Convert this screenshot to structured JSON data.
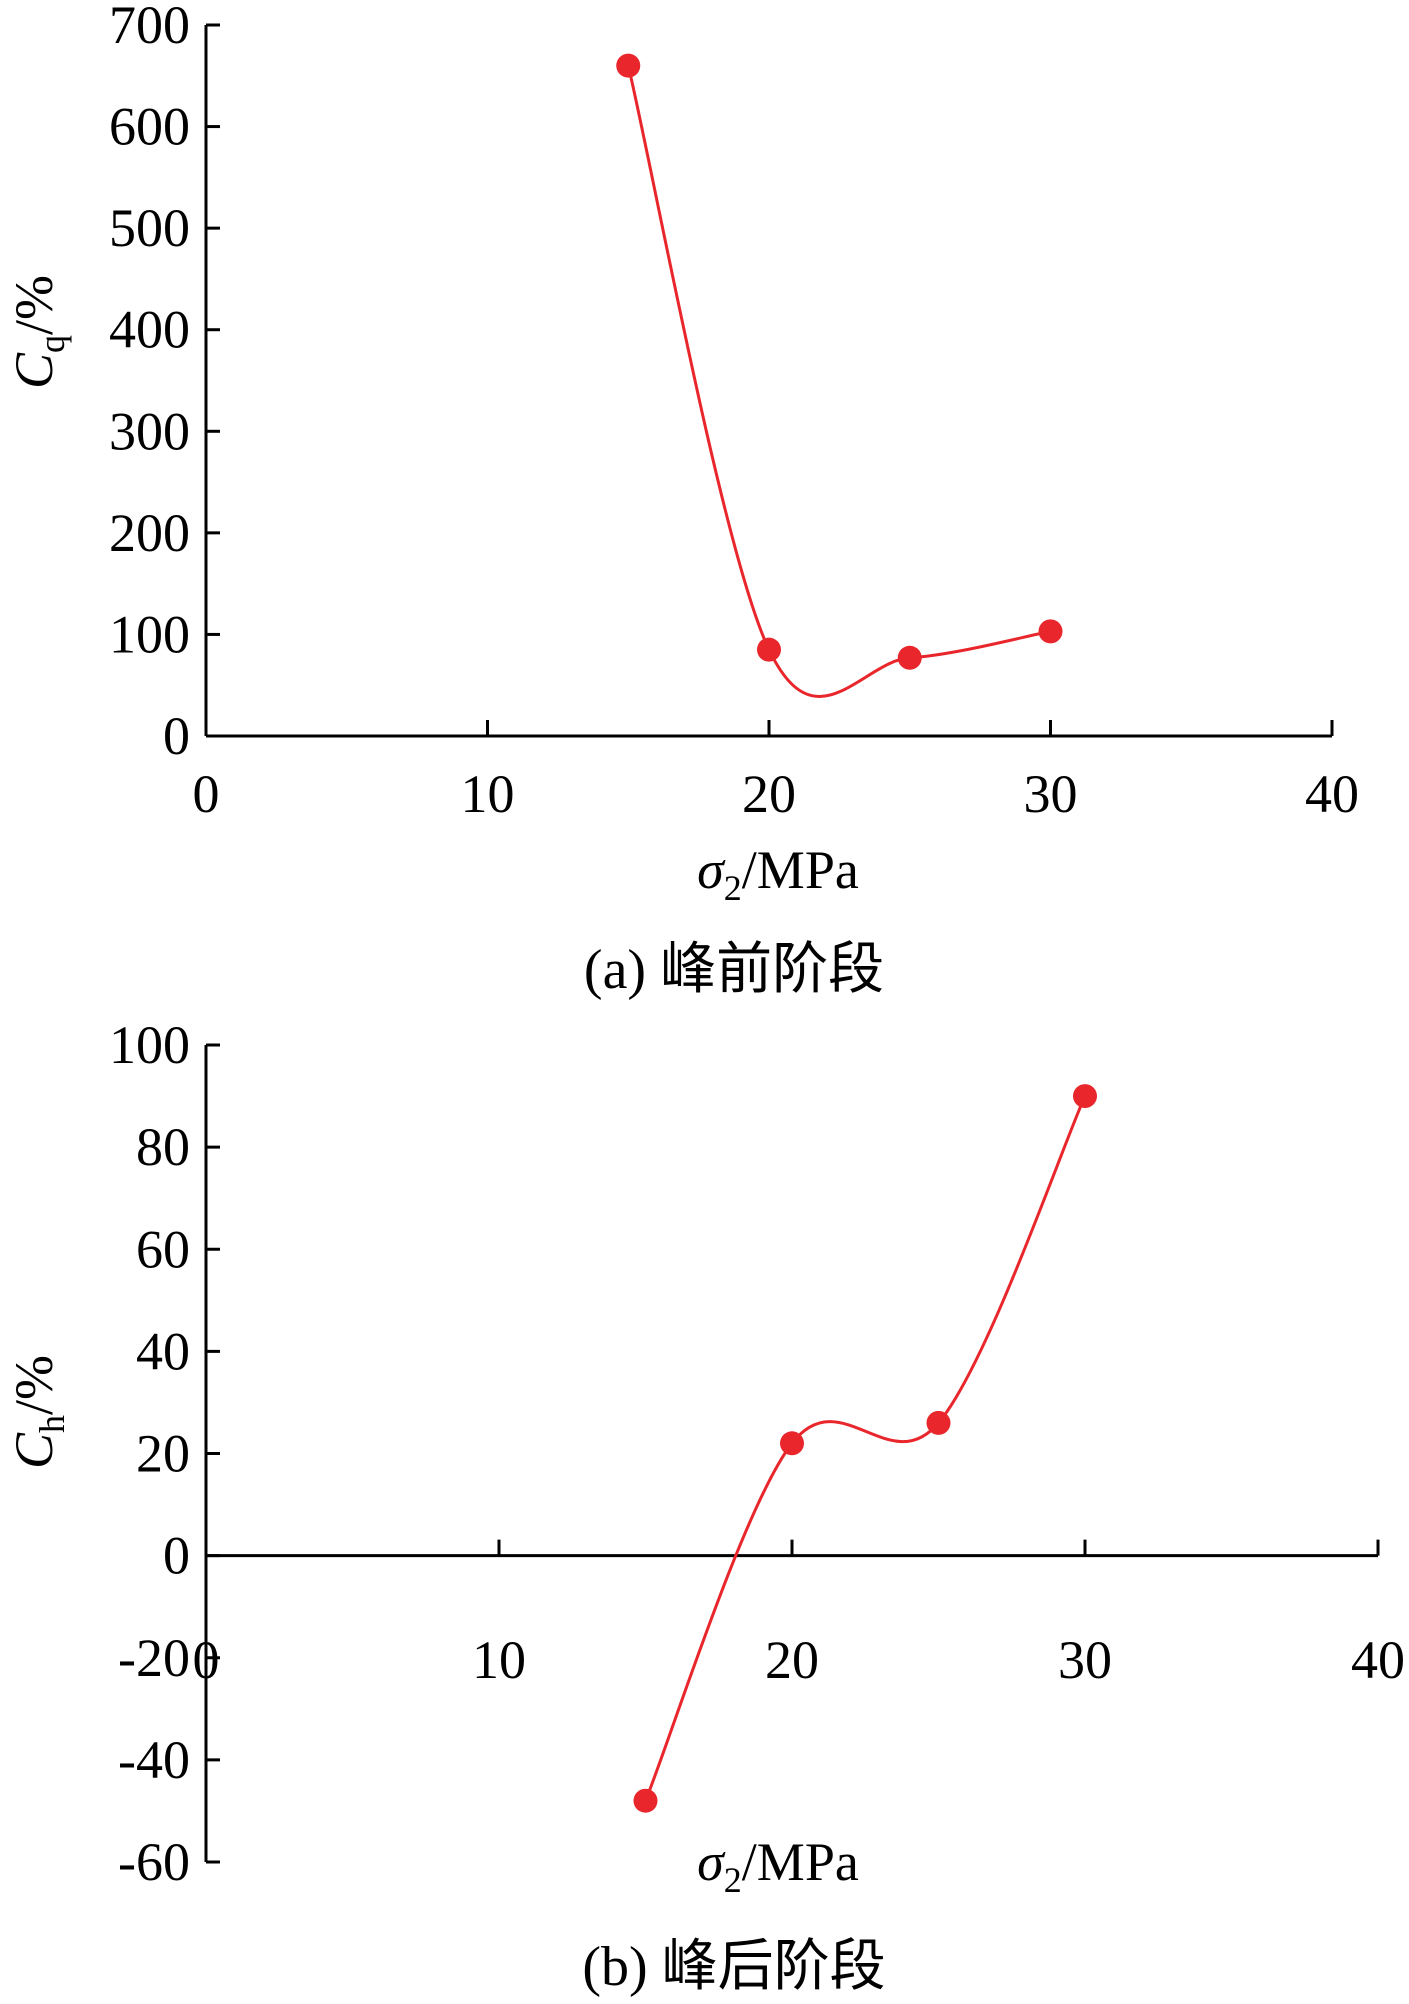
{
  "chart_data": [
    {
      "type": "line",
      "caption": "(a) 峰前阶段",
      "xlabel": {
        "symbol": "σ",
        "sub": "2",
        "unit": "/MPa"
      },
      "ylabel": {
        "symbol": "C",
        "sub": "q",
        "unit": "/%"
      },
      "xlim": [
        0,
        40
      ],
      "ylim": [
        0,
        700
      ],
      "x_ticks": [
        0,
        10,
        20,
        30,
        40
      ],
      "y_ticks": [
        0,
        100,
        200,
        300,
        400,
        500,
        600,
        700
      ],
      "x_tick_labels": [
        "0",
        "10",
        "20",
        "30",
        "40"
      ],
      "y_tick_labels": [
        "0",
        "100",
        "200",
        "300",
        "400",
        "500",
        "600",
        "700"
      ],
      "color": "#e8262b",
      "smooth": true,
      "series": [
        {
          "x": [
            15,
            20,
            25,
            30
          ],
          "y": [
            660,
            85,
            77,
            103
          ]
        }
      ]
    },
    {
      "type": "line",
      "caption": "(b) 峰后阶段",
      "xlabel": {
        "symbol": "σ",
        "sub": "2",
        "unit": "/MPa"
      },
      "ylabel": {
        "symbol": "C",
        "sub": "h",
        "unit": "/%"
      },
      "xlim": [
        0,
        40
      ],
      "ylim": [
        -60,
        100
      ],
      "x_ticks": [
        0,
        10,
        20,
        30,
        40
      ],
      "y_ticks": [
        -60,
        -40,
        -20,
        0,
        20,
        40,
        60,
        80,
        100
      ],
      "x_tick_labels": [
        "0",
        "10",
        "20",
        "30",
        "40"
      ],
      "y_tick_labels": [
        "-60",
        "-40",
        "-20",
        "0",
        "20",
        "40",
        "60",
        "80",
        "100"
      ],
      "color": "#e8262b",
      "smooth": true,
      "series": [
        {
          "x": [
            15,
            20,
            25,
            30
          ],
          "y": [
            -48,
            22,
            26,
            90
          ]
        }
      ]
    }
  ]
}
